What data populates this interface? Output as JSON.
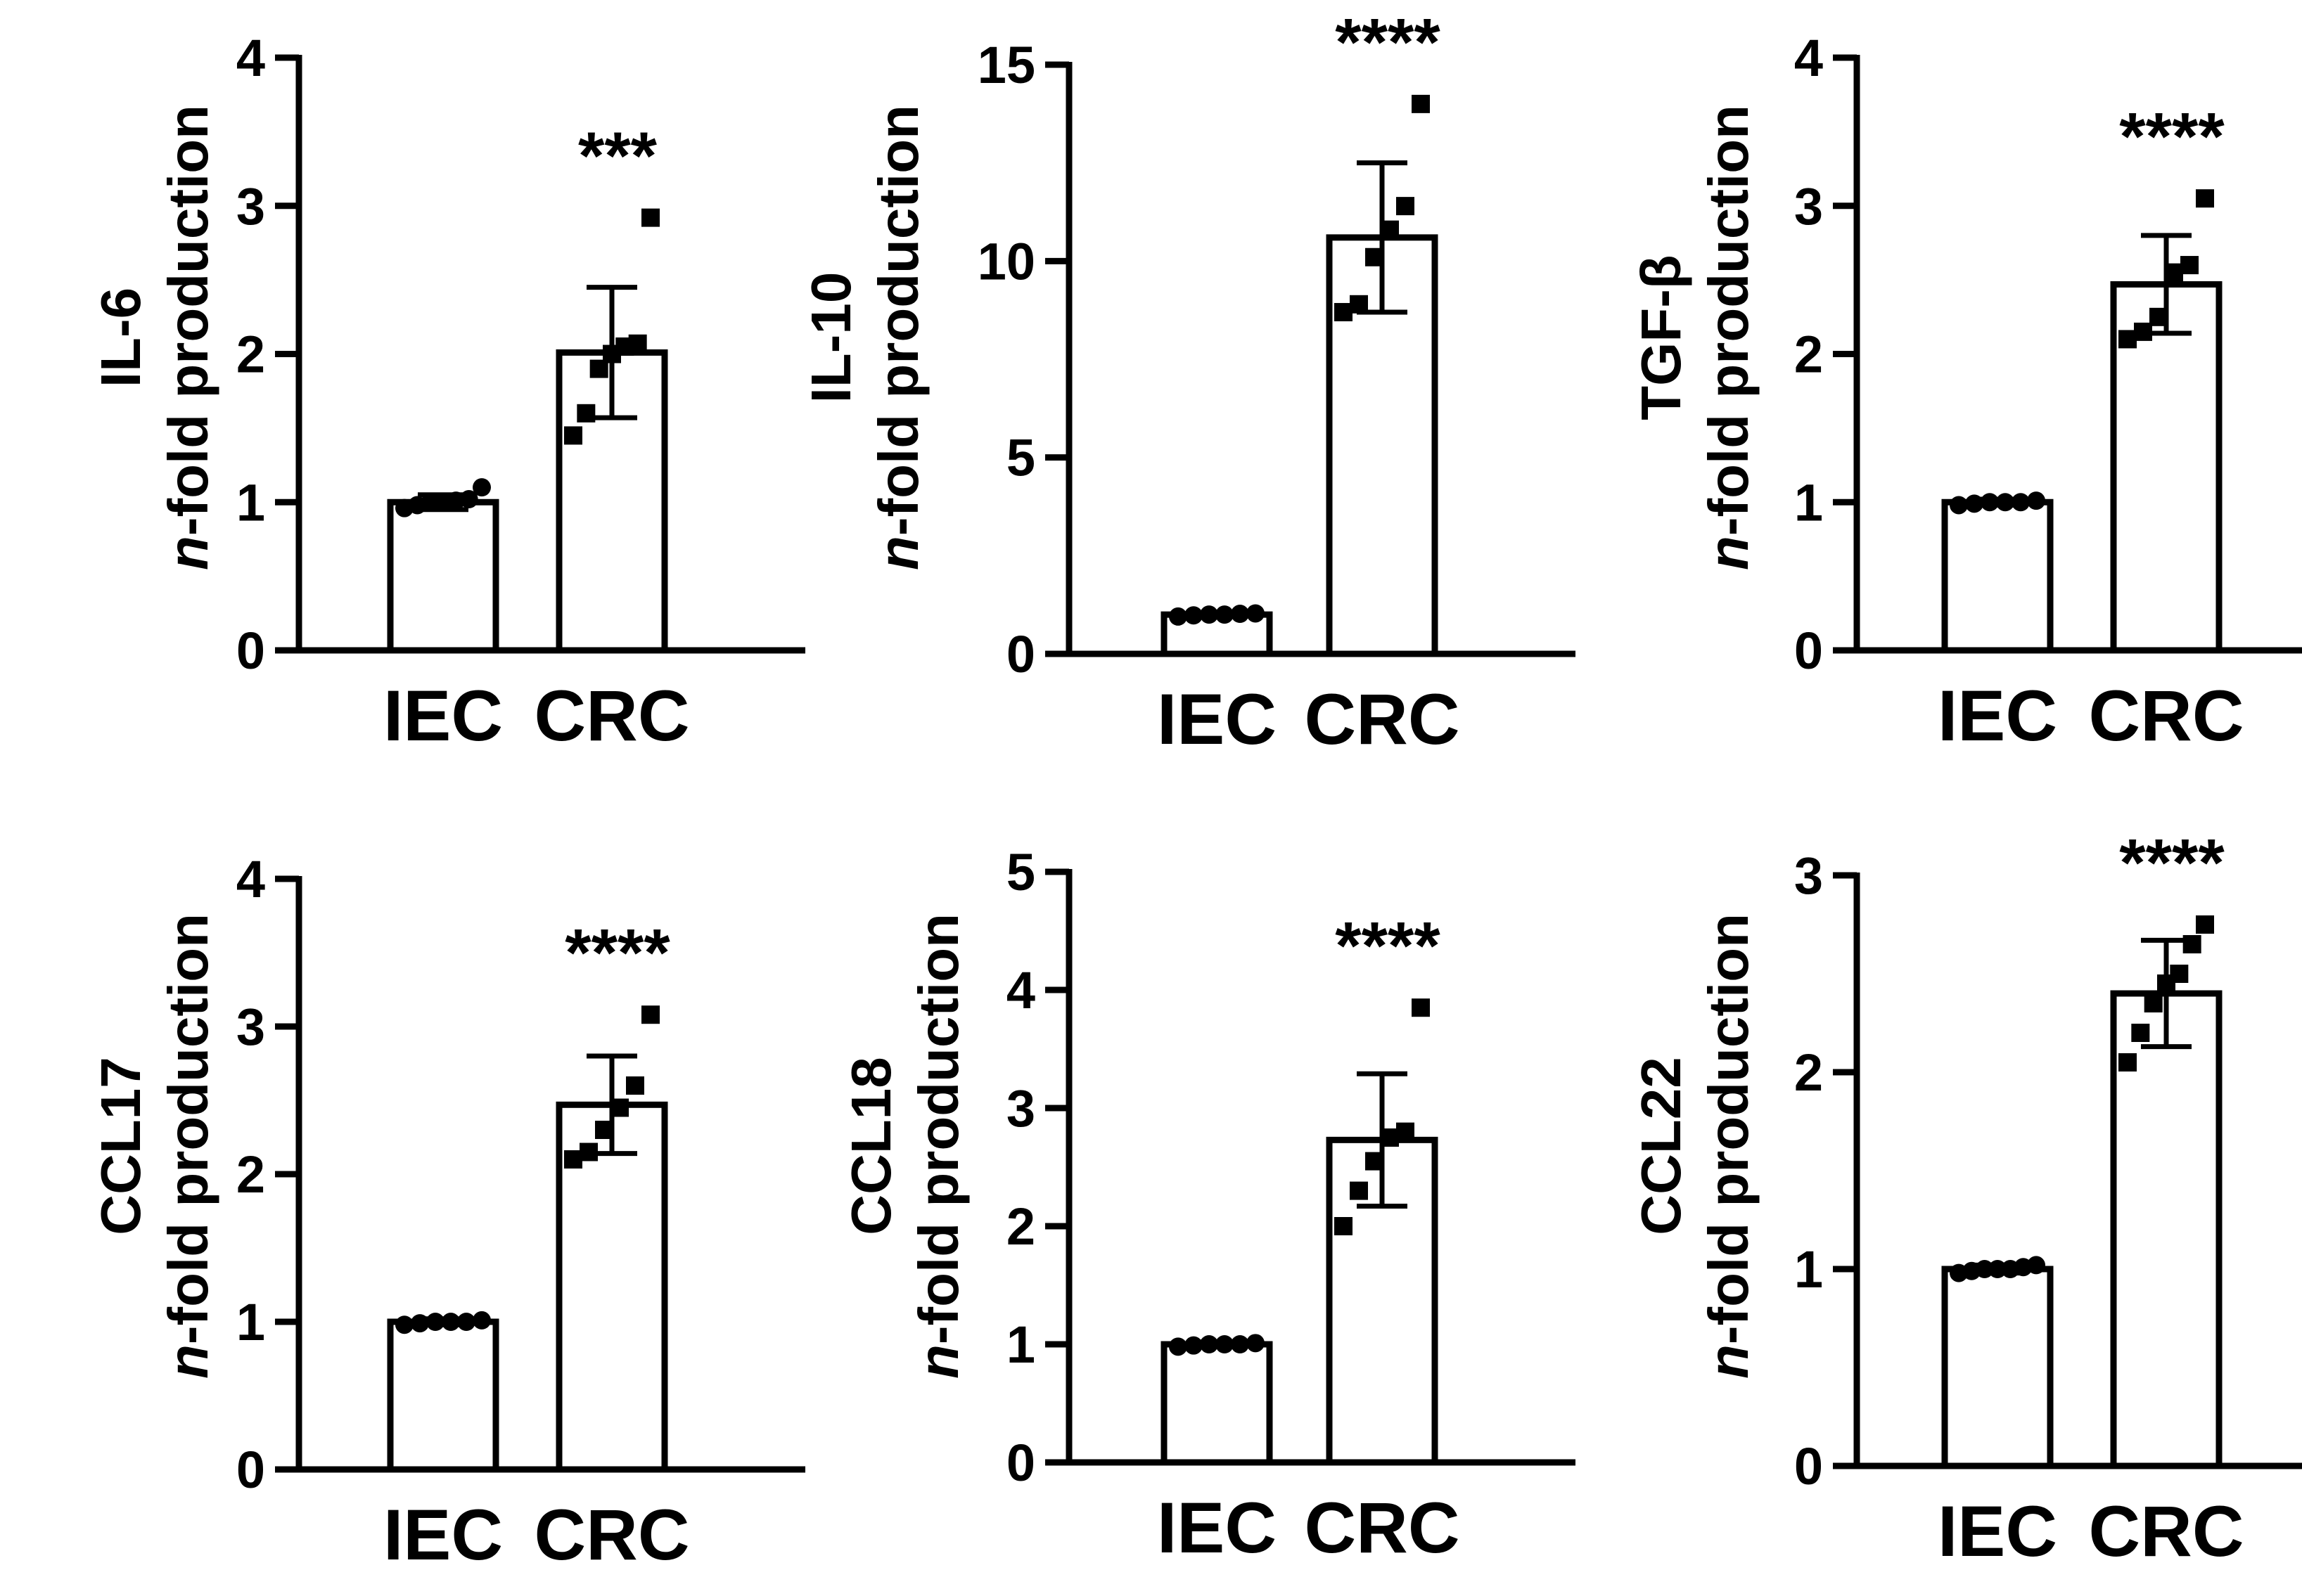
{
  "figure": {
    "category_labels": [
      "IEC",
      "CRC"
    ]
  },
  "chart_data": [
    {
      "type": "bar",
      "title": "IL-6",
      "ylabel_main": "IL-6",
      "ylabel_prefix": "n",
      "ylabel_suffix": "-fold production",
      "categories": [
        "IEC",
        "CRC"
      ],
      "values": [
        1.0,
        2.01
      ],
      "errors": [
        0.05,
        0.44
      ],
      "points": [
        [
          0.96,
          0.98,
          1.0,
          1.0,
          1.01,
          1.02,
          1.1
        ],
        [
          1.45,
          1.6,
          1.9,
          2.0,
          2.05,
          2.07,
          2.92
        ]
      ],
      "ylim": [
        0,
        4
      ],
      "yticks": [
        0,
        1,
        2,
        3,
        4
      ],
      "significance": "***"
    },
    {
      "type": "bar",
      "title": "IL-10",
      "ylabel_main": "IL-10",
      "ylabel_prefix": "n",
      "ylabel_suffix": "-fold production",
      "categories": [
        "IEC",
        "CRC"
      ],
      "values": [
        1.0,
        10.6
      ],
      "errors": [
        0.05,
        1.9
      ],
      "points": [
        [
          0.95,
          0.98,
          1.0,
          1.0,
          1.02,
          1.03
        ],
        [
          8.7,
          8.9,
          10.1,
          10.8,
          11.4,
          14.0
        ]
      ],
      "ylim": [
        0,
        15
      ],
      "yticks": [
        0,
        5,
        10,
        15
      ],
      "significance": "****"
    },
    {
      "type": "bar",
      "title": "TGF-β",
      "ylabel_main": "TGF-β",
      "ylabel_prefix": "n",
      "ylabel_suffix": "-fold production",
      "categories": [
        "IEC",
        "CRC"
      ],
      "values": [
        1.0,
        2.47
      ],
      "errors": [
        0.02,
        0.33
      ],
      "points": [
        [
          0.98,
          0.99,
          1.0,
          1.0,
          1.0,
          1.01
        ],
        [
          2.1,
          2.15,
          2.25,
          2.55,
          2.6,
          3.05
        ]
      ],
      "ylim": [
        0,
        4
      ],
      "yticks": [
        0,
        1,
        2,
        3,
        4
      ],
      "significance": "****"
    },
    {
      "type": "bar",
      "title": "CCL17",
      "ylabel_main": "CCL17",
      "ylabel_prefix": "n",
      "ylabel_suffix": "-fold production",
      "categories": [
        "IEC",
        "CRC"
      ],
      "values": [
        1.0,
        2.47
      ],
      "errors": [
        0.02,
        0.33
      ],
      "points": [
        [
          0.98,
          0.99,
          1.0,
          1.0,
          1.0,
          1.01
        ],
        [
          2.1,
          2.15,
          2.3,
          2.45,
          2.6,
          3.08
        ]
      ],
      "ylim": [
        0,
        4
      ],
      "yticks": [
        0,
        1,
        2,
        3,
        4
      ],
      "significance": "****"
    },
    {
      "type": "bar",
      "title": "CCL18",
      "ylabel_main": "CCL18",
      "ylabel_prefix": "n",
      "ylabel_suffix": "-fold production",
      "categories": [
        "IEC",
        "CRC"
      ],
      "values": [
        1.0,
        2.73
      ],
      "errors": [
        0.02,
        0.56
      ],
      "points": [
        [
          0.98,
          0.99,
          1.0,
          1.0,
          1.0,
          1.01
        ],
        [
          2.0,
          2.3,
          2.55,
          2.75,
          2.8,
          3.85
        ]
      ],
      "ylim": [
        0,
        5
      ],
      "yticks": [
        0,
        1,
        2,
        3,
        4,
        5
      ],
      "significance": "****"
    },
    {
      "type": "bar",
      "title": "CCL22",
      "ylabel_main": "CCL22",
      "ylabel_prefix": "n",
      "ylabel_suffix": "-fold production",
      "categories": [
        "IEC",
        "CRC"
      ],
      "values": [
        1.0,
        2.4
      ],
      "errors": [
        0.02,
        0.27
      ],
      "points": [
        [
          0.98,
          0.99,
          1.0,
          1.0,
          1.0,
          1.01,
          1.02
        ],
        [
          2.05,
          2.2,
          2.35,
          2.45,
          2.5,
          2.65,
          2.75
        ]
      ],
      "ylim": [
        0,
        3
      ],
      "yticks": [
        0,
        1,
        2,
        3
      ],
      "significance": "****"
    }
  ]
}
